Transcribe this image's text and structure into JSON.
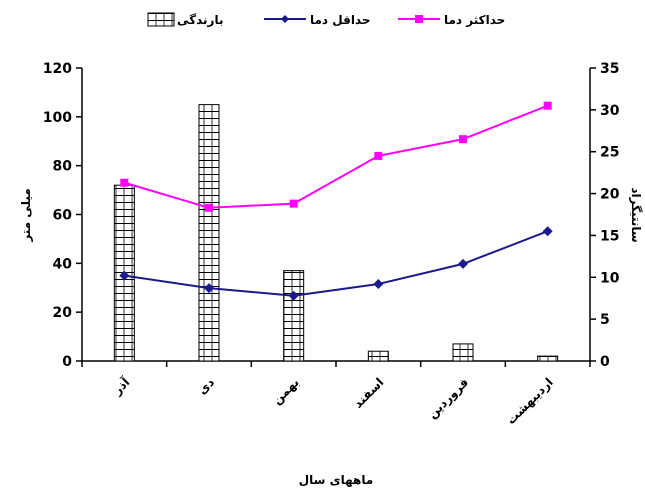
{
  "chart_data": {
    "type": "bar-line-combo",
    "categories": [
      "آذر",
      "دی",
      "بهمن",
      "اسفند",
      "فروردین",
      "اردیبهشت"
    ],
    "series": [
      {
        "name": "بارندگی",
        "kind": "bar",
        "axis": "left",
        "values": [
          72,
          105,
          37,
          4,
          7,
          2
        ]
      },
      {
        "name": "حداقل دما",
        "kind": "line",
        "axis": "right",
        "values": [
          10.2,
          8.7,
          7.8,
          9.2,
          11.6,
          15.5
        ]
      },
      {
        "name": "حداکثر دما",
        "kind": "line",
        "axis": "right",
        "values": [
          21.3,
          18.3,
          18.8,
          24.5,
          26.5,
          30.5
        ]
      }
    ],
    "xlabel": "ماههای سال",
    "ylabel_left": "میلی متر",
    "ylabel_right": "سانتیگراد",
    "ylim_left": [
      0,
      120
    ],
    "yticks_left": [
      0,
      20,
      40,
      60,
      80,
      100,
      120
    ],
    "ylim_right": [
      0,
      35
    ],
    "yticks_right": [
      0,
      5,
      10,
      15,
      20,
      25,
      30,
      35
    ],
    "legend_position": "top",
    "grid": false,
    "colors": {
      "bar_fill": "#ffffff",
      "bar_pattern": "#000000",
      "min_temp": "#1a1a8c",
      "max_temp": "#ff00ff",
      "axis": "#000000"
    }
  }
}
